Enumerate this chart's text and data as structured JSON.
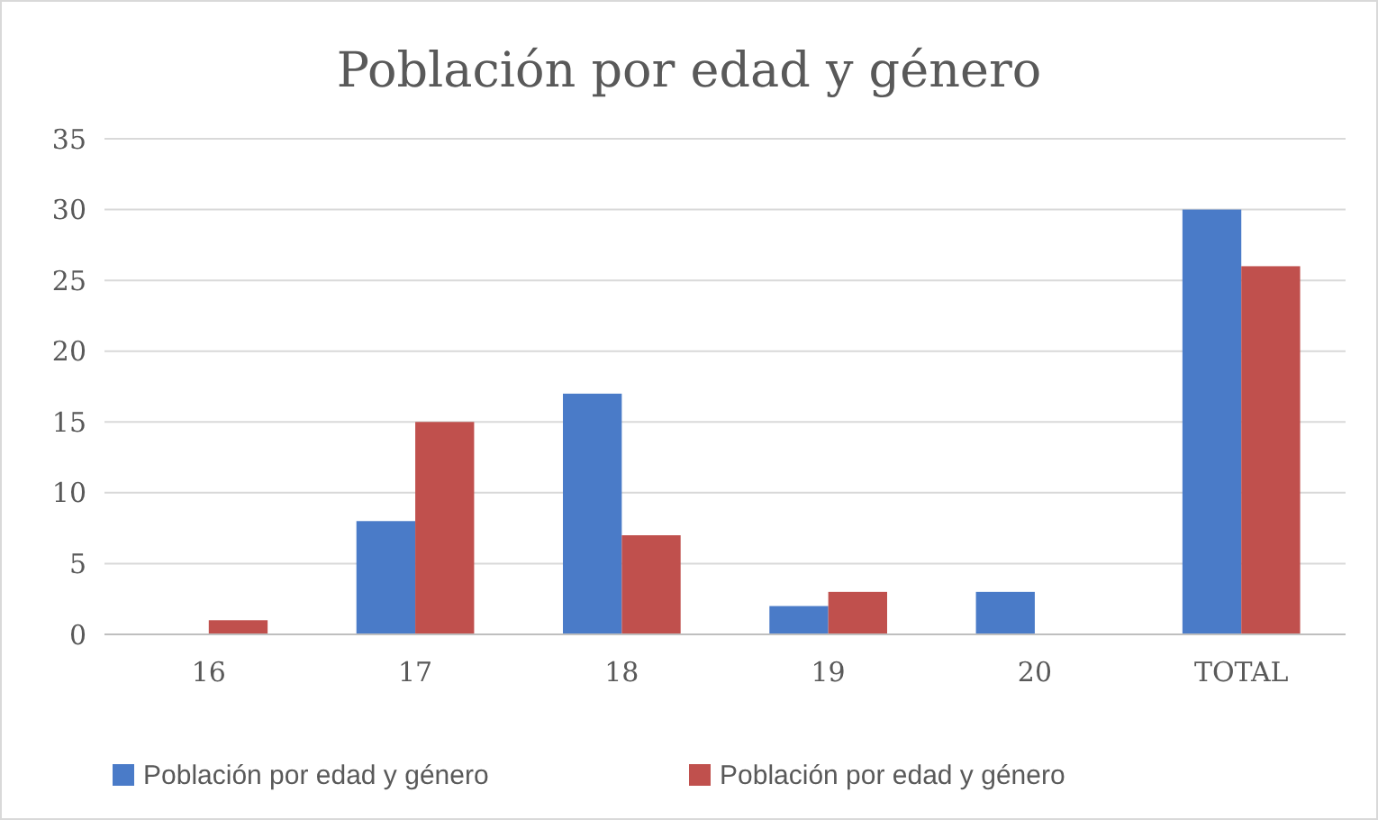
{
  "chart_data": {
    "type": "bar",
    "title": "Población por edad y género",
    "categories": [
      "16",
      "17",
      "18",
      "19",
      "20",
      "TOTAL"
    ],
    "series": [
      {
        "name": "Población por edad y género",
        "color": "#4a7bc8",
        "values": [
          0,
          8,
          17,
          2,
          3,
          30
        ]
      },
      {
        "name": "Población por edad y género",
        "color": "#c0504d",
        "values": [
          1,
          15,
          7,
          3,
          0,
          26
        ]
      }
    ],
    "ylim": [
      0,
      35
    ],
    "yticks": [
      0,
      5,
      10,
      15,
      20,
      25,
      30,
      35
    ],
    "grid": "y",
    "legend": "bottom"
  }
}
